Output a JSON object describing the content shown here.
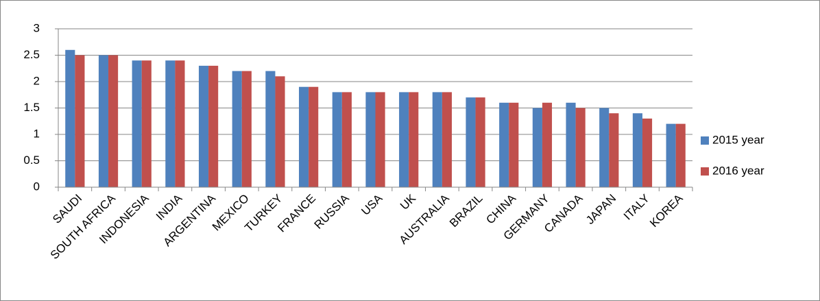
{
  "chart_data": {
    "type": "bar",
    "categories": [
      "SAUDI",
      "SOUTH AFRICA",
      "INDONESIA",
      "INDIA",
      "ARGENTINA",
      "MEXICO",
      "TURKEY",
      "FRANCE",
      "RUSSIA",
      "USA",
      "UK",
      "AUSTRALIA",
      "BRAZIL",
      "CHINA",
      "GERMANY",
      "CANADA",
      "JAPAN",
      "ITALY",
      "KOREA"
    ],
    "series": [
      {
        "name": "2015 year",
        "color": "#4f81bd",
        "values": [
          2.6,
          2.5,
          2.4,
          2.4,
          2.3,
          2.2,
          2.2,
          1.9,
          1.8,
          1.8,
          1.8,
          1.8,
          1.7,
          1.6,
          1.5,
          1.6,
          1.5,
          1.4,
          1.2
        ]
      },
      {
        "name": "2016 year",
        "color": "#c0504d",
        "values": [
          2.5,
          2.5,
          2.4,
          2.4,
          2.3,
          2.2,
          2.1,
          1.9,
          1.8,
          1.8,
          1.8,
          1.8,
          1.7,
          1.6,
          1.6,
          1.5,
          1.4,
          1.3,
          1.2
        ]
      }
    ],
    "ylim": [
      0,
      3
    ],
    "yticks": [
      0,
      0.5,
      1,
      1.5,
      2,
      2.5,
      3
    ],
    "grid": true,
    "legend": "right"
  }
}
